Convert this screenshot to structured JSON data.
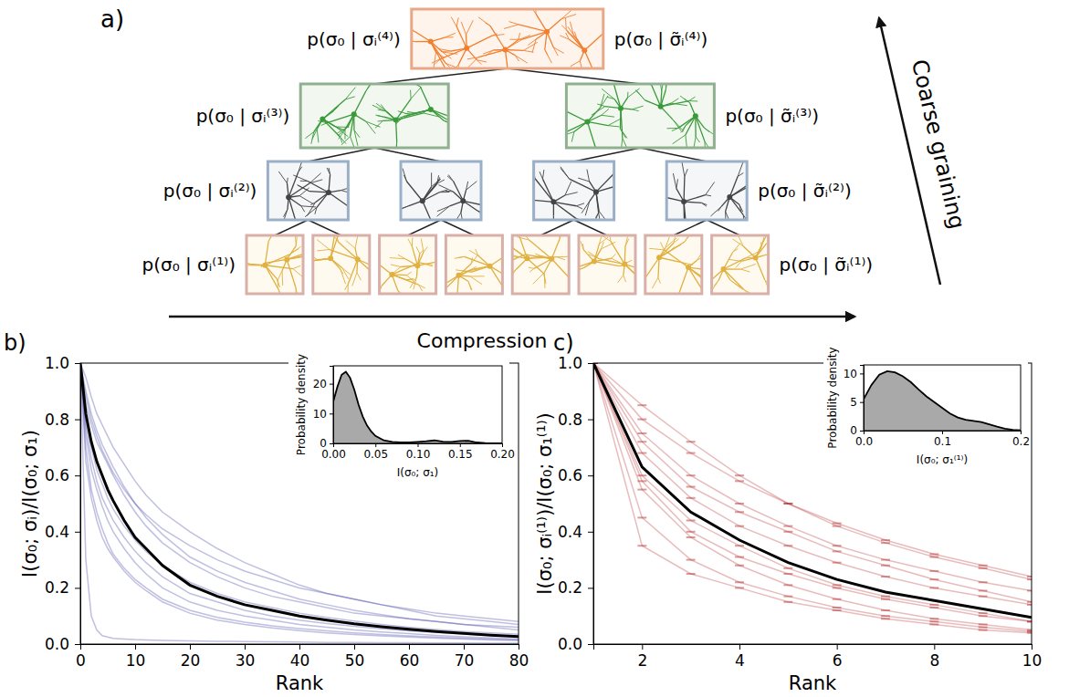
{
  "panel_a": {
    "title": "a)",
    "levels": [
      {
        "boxes": 1,
        "left": "p(σ₀ | σᵢ⁽⁴⁾)",
        "right": "p(σ₀ | σ̃ᵢ⁽⁴⁾)"
      },
      {
        "boxes": 2,
        "left": "p(σ₀ | σᵢ⁽³⁾)",
        "right": "p(σ₀ | σ̃ᵢ⁽³⁾)"
      },
      {
        "boxes": 4,
        "left": "p(σ₀ | σᵢ⁽²⁾)",
        "right": "p(σ₀ | σ̃ᵢ⁽²⁾)"
      },
      {
        "boxes": 8,
        "left": "p(σ₀ | σᵢ⁽¹⁾)",
        "right": "p(σ₀ | σ̃ᵢ⁽¹⁾)"
      }
    ],
    "arrows": {
      "horizontal": "Compression",
      "diagonal": "Coarse graining"
    }
  },
  "chart_data": [
    {
      "type": "line",
      "title": "b)",
      "xlabel": "Rank",
      "ylabel": "I(σ₀; σᵢ)/I(σ₀; σ₁)",
      "x": [
        0,
        1,
        2,
        3,
        4,
        5,
        6,
        8,
        10,
        12,
        15,
        20,
        25,
        30,
        35,
        40,
        45,
        50,
        55,
        60,
        65,
        70,
        75,
        80
      ],
      "xlim": [
        0,
        80
      ],
      "xticks": [
        0,
        10,
        20,
        30,
        40,
        50,
        60,
        70,
        80
      ],
      "ylim": [
        0,
        1
      ],
      "yticks": [
        {
          "value": 0,
          "label": "0.0"
        },
        {
          "value": 0.2,
          "label": "0.2"
        },
        {
          "value": 0.4,
          "label": "0.4"
        },
        {
          "value": 0.6,
          "label": "0.6"
        },
        {
          "value": 0.8,
          "label": "0.8"
        },
        {
          "value": 1,
          "label": "1.0"
        }
      ],
      "grid": false,
      "series": [
        {
          "color": "#2b2b9c",
          "line_style": "faint",
          "values": [
            1,
            0.9,
            0.82,
            0.76,
            0.71,
            0.67,
            0.63,
            0.56,
            0.5,
            0.45,
            0.39,
            0.31,
            0.26,
            0.22,
            0.19,
            0.16,
            0.14,
            0.12,
            0.105,
            0.09,
            0.08,
            0.07,
            0.06,
            0.05
          ]
        },
        {
          "color": "#2b2b9c",
          "line_style": "faint",
          "values": [
            1,
            0.75,
            0.62,
            0.55,
            0.49,
            0.44,
            0.4,
            0.34,
            0.29,
            0.25,
            0.2,
            0.15,
            0.12,
            0.1,
            0.085,
            0.07,
            0.06,
            0.05,
            0.043,
            0.037,
            0.031,
            0.026,
            0.022,
            0.018
          ]
        },
        {
          "color": "#2b2b9c",
          "line_style": "faint",
          "values": [
            1,
            0.85,
            0.78,
            0.72,
            0.68,
            0.64,
            0.6,
            0.53,
            0.47,
            0.42,
            0.36,
            0.29,
            0.24,
            0.2,
            0.17,
            0.15,
            0.13,
            0.11,
            0.1,
            0.09,
            0.08,
            0.07,
            0.065,
            0.06
          ]
        },
        {
          "color": "#2b2b9c",
          "line_style": "faint",
          "values": [
            1,
            0.7,
            0.55,
            0.47,
            0.41,
            0.36,
            0.32,
            0.27,
            0.23,
            0.2,
            0.16,
            0.12,
            0.095,
            0.078,
            0.065,
            0.055,
            0.047,
            0.04,
            0.034,
            0.029,
            0.025,
            0.021,
            0.018,
            0.015
          ]
        },
        {
          "color": "#2b2b9c",
          "line_style": "faint",
          "values": [
            1,
            0.95,
            0.88,
            0.82,
            0.78,
            0.74,
            0.7,
            0.64,
            0.58,
            0.53,
            0.47,
            0.4,
            0.34,
            0.29,
            0.25,
            0.21,
            0.18,
            0.16,
            0.14,
            0.12,
            0.1,
            0.09,
            0.08,
            0.07
          ]
        },
        {
          "color": "#2b2b9c",
          "line_style": "faint",
          "values": [
            1,
            0.3,
            0.1,
            0.05,
            0.03,
            0.025,
            0.02,
            0.018,
            0.016,
            0.015,
            0.013,
            0.011,
            0.01,
            0.009,
            0.008,
            0.007,
            0.006,
            0.006,
            0.005,
            0.005,
            0.004,
            0.004,
            0.003,
            0.003
          ]
        },
        {
          "color": "#2b2b9c",
          "line_style": "faint",
          "values": [
            1,
            0.8,
            0.7,
            0.62,
            0.57,
            0.52,
            0.48,
            0.42,
            0.37,
            0.33,
            0.28,
            0.22,
            0.18,
            0.15,
            0.13,
            0.11,
            0.095,
            0.082,
            0.07,
            0.06,
            0.052,
            0.045,
            0.04,
            0.035
          ]
        },
        {
          "color": "#2b2b9c",
          "line_style": "faint",
          "values": [
            1,
            0.88,
            0.8,
            0.74,
            0.69,
            0.65,
            0.61,
            0.55,
            0.5,
            0.46,
            0.41,
            0.35,
            0.3,
            0.26,
            0.23,
            0.2,
            0.18,
            0.16,
            0.14,
            0.125,
            0.11,
            0.1,
            0.09,
            0.08
          ]
        },
        {
          "color": "#2b2b9c",
          "line_style": "faint",
          "values": [
            1,
            0.65,
            0.52,
            0.44,
            0.38,
            0.34,
            0.31,
            0.26,
            0.22,
            0.19,
            0.15,
            0.11,
            0.085,
            0.07,
            0.058,
            0.048,
            0.04,
            0.034,
            0.029,
            0.025,
            0.021,
            0.018,
            0.015,
            0.013
          ]
        },
        {
          "color": "#2b2b9c",
          "line_style": "faint",
          "values": [
            1,
            0.78,
            0.66,
            0.58,
            0.52,
            0.48,
            0.44,
            0.38,
            0.33,
            0.29,
            0.24,
            0.18,
            0.15,
            0.12,
            0.1,
            0.085,
            0.073,
            0.063,
            0.054,
            0.047,
            0.041,
            0.036,
            0.031,
            0.027
          ]
        },
        {
          "color": "#000000",
          "line_style": "thick",
          "values": [
            1,
            0.82,
            0.72,
            0.65,
            0.6,
            0.55,
            0.51,
            0.44,
            0.38,
            0.34,
            0.28,
            0.21,
            0.17,
            0.14,
            0.12,
            0.1,
            0.085,
            0.072,
            0.062,
            0.053,
            0.045,
            0.038,
            0.032,
            0.027
          ]
        }
      ]
    },
    {
      "type": "area",
      "xlabel": "I(σ₀; σ₁)",
      "ylabel": "Probability density",
      "x": [
        0,
        0.005,
        0.01,
        0.015,
        0.02,
        0.025,
        0.03,
        0.035,
        0.04,
        0.045,
        0.05,
        0.06,
        0.07,
        0.08,
        0.09,
        0.1,
        0.11,
        0.12,
        0.13,
        0.14,
        0.15,
        0.16,
        0.17,
        0.18,
        0.19,
        0.2
      ],
      "values": [
        14,
        19,
        23,
        24,
        22,
        18,
        13,
        9,
        6,
        4,
        2.5,
        1,
        0.5,
        0.3,
        0.3,
        0.5,
        0.7,
        1,
        0.6,
        0.5,
        0.8,
        0.9,
        0.3,
        0.1,
        0.05,
        0.02
      ],
      "color": "#a9a9a9",
      "xlim": [
        0,
        0.2
      ],
      "xticks": [
        {
          "value": 0,
          "label": "0.00"
        },
        {
          "value": 0.05,
          "label": "0.05"
        },
        {
          "value": 0.1,
          "label": "0.10"
        },
        {
          "value": 0.15,
          "label": "0.15"
        },
        {
          "value": 0.2,
          "label": "0.20"
        }
      ],
      "ylim": [
        0,
        26
      ],
      "yticks": [
        0,
        10,
        20
      ],
      "grid": false
    },
    {
      "type": "line",
      "title": "c)",
      "xlabel": "Rank",
      "ylabel": "I(σ₀; σᵢ⁽¹⁾)/I(σ₀; σ₁⁽¹⁾)",
      "x": [
        1,
        2,
        3,
        4,
        5,
        6,
        7,
        8,
        9,
        10
      ],
      "xlim": [
        1,
        10
      ],
      "xticks": [
        2,
        4,
        6,
        8,
        10
      ],
      "ylim": [
        0,
        1
      ],
      "yticks": [
        {
          "value": 0,
          "label": "0.0"
        },
        {
          "value": 0.2,
          "label": "0.2"
        },
        {
          "value": 0.4,
          "label": "0.4"
        },
        {
          "value": 0.6,
          "label": "0.6"
        },
        {
          "value": 0.8,
          "label": "0.8"
        },
        {
          "value": 1,
          "label": "1.0"
        }
      ],
      "grid": false,
      "series": [
        {
          "color": "#b22222",
          "line_style": "faint",
          "marker": "hline",
          "values": [
            1,
            0.75,
            0.6,
            0.5,
            0.42,
            0.35,
            0.3,
            0.26,
            0.22,
            0.19
          ]
        },
        {
          "color": "#b22222",
          "line_style": "faint",
          "marker": "hline",
          "values": [
            1,
            0.55,
            0.38,
            0.28,
            0.21,
            0.16,
            0.12,
            0.09,
            0.07,
            0.05
          ]
        },
        {
          "color": "#b22222",
          "line_style": "faint",
          "marker": "hline",
          "values": [
            1,
            0.8,
            0.68,
            0.58,
            0.5,
            0.43,
            0.37,
            0.32,
            0.28,
            0.24
          ]
        },
        {
          "color": "#b22222",
          "line_style": "faint",
          "marker": "hline",
          "values": [
            1,
            0.45,
            0.3,
            0.22,
            0.17,
            0.13,
            0.1,
            0.08,
            0.06,
            0.045
          ]
        },
        {
          "color": "#b22222",
          "line_style": "faint",
          "marker": "hline",
          "values": [
            1,
            0.68,
            0.52,
            0.42,
            0.35,
            0.29,
            0.24,
            0.2,
            0.17,
            0.14
          ]
        },
        {
          "color": "#b22222",
          "line_style": "faint",
          "marker": "hline",
          "values": [
            1,
            0.35,
            0.25,
            0.2,
            0.15,
            0.12,
            0.09,
            0.07,
            0.05,
            0.04
          ]
        },
        {
          "color": "#b22222",
          "line_style": "faint",
          "marker": "hline",
          "values": [
            1,
            0.72,
            0.56,
            0.47,
            0.4,
            0.33,
            0.28,
            0.23,
            0.19,
            0.15
          ]
        },
        {
          "color": "#b22222",
          "line_style": "faint",
          "marker": "hline",
          "values": [
            1,
            0.6,
            0.44,
            0.35,
            0.27,
            0.21,
            0.17,
            0.14,
            0.11,
            0.08
          ]
        },
        {
          "color": "#b22222",
          "line_style": "faint",
          "marker": "hline",
          "values": [
            1,
            0.85,
            0.72,
            0.6,
            0.5,
            0.42,
            0.36,
            0.31,
            0.27,
            0.23
          ]
        },
        {
          "color": "#b22222",
          "line_style": "faint",
          "marker": "hline",
          "values": [
            1,
            0.58,
            0.4,
            0.31,
            0.25,
            0.2,
            0.16,
            0.13,
            0.1,
            0.08
          ]
        },
        {
          "color": "#000000",
          "line_style": "thick",
          "values": [
            1,
            0.63,
            0.47,
            0.37,
            0.29,
            0.23,
            0.185,
            0.155,
            0.125,
            0.095
          ]
        }
      ]
    },
    {
      "type": "area",
      "xlabel": "I(σ₀; σ₁⁽¹⁾)",
      "ylabel": "Probability density",
      "x": [
        0,
        0.01,
        0.02,
        0.03,
        0.04,
        0.05,
        0.06,
        0.07,
        0.08,
        0.09,
        0.1,
        0.11,
        0.12,
        0.13,
        0.14,
        0.15,
        0.16,
        0.17,
        0.18,
        0.19,
        0.2
      ],
      "values": [
        5.5,
        8,
        9.8,
        10.4,
        10.2,
        9.5,
        8.5,
        7.2,
        6,
        5,
        4,
        3,
        2.3,
        1.9,
        1.7,
        1.5,
        1.1,
        0.7,
        0.35,
        0.15,
        0.05
      ],
      "color": "#a9a9a9",
      "xlim": [
        0,
        0.2
      ],
      "xticks": [
        {
          "value": 0,
          "label": "0.0"
        },
        {
          "value": 0.1,
          "label": "0.1"
        },
        {
          "value": 0.2,
          "label": "0.2"
        }
      ],
      "ylim": [
        0,
        11.5
      ],
      "yticks": [
        0,
        5,
        10
      ],
      "grid": false
    }
  ]
}
